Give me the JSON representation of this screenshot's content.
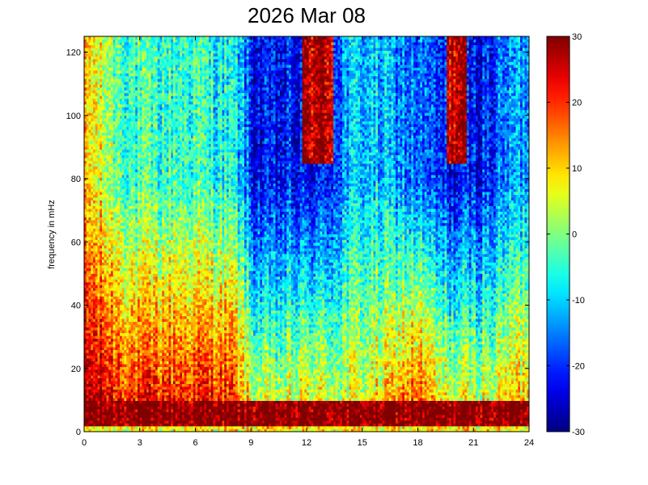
{
  "chart_data": {
    "type": "heatmap",
    "title": "2026 Mar 08",
    "xlabel": "",
    "ylabel": "frequency in mHz",
    "xlim": [
      0,
      24
    ],
    "ylim": [
      0,
      125
    ],
    "x_ticks": [
      0,
      3,
      6,
      9,
      12,
      15,
      18,
      21,
      24
    ],
    "y_ticks": [
      0,
      20,
      40,
      60,
      80,
      100,
      120
    ],
    "colorbar": {
      "colormap": "jet",
      "clim": [
        -30,
        30
      ],
      "ticks": [
        -30,
        -20,
        -10,
        0,
        10,
        20,
        30
      ]
    },
    "grid": false,
    "description_of_values": "spectrogram levels: high (red/dark red) at low frequencies (< ~10 mHz) all day; hours 0-8.6 mostly yellow-red up to ~60 mHz and cyan-yellow above; after ~8.6 h strong drop to blue/dark blue above ~60 mHz, with dark red vertical streaks near 12-13 h and 19.5-21 h at high frequencies; enhancement around 17-18 h below ~40 mHz",
    "time_profile": {
      "hours": [
        0,
        1,
        2,
        3,
        4,
        5,
        6,
        7,
        8,
        8.6,
        9,
        10,
        11,
        12,
        13,
        14,
        15,
        16,
        17,
        18,
        19,
        20,
        21,
        22,
        23,
        24
      ],
      "low_band_level": [
        28,
        25,
        22,
        20,
        21,
        22,
        21,
        22,
        20,
        12,
        5,
        3,
        4,
        8,
        6,
        5,
        6,
        8,
        14,
        18,
        8,
        6,
        5,
        6,
        10,
        12
      ],
      "high_band_level": [
        10,
        4,
        -2,
        -5,
        -5,
        -4,
        -4,
        -6,
        -8,
        -12,
        -22,
        -24,
        -22,
        -24,
        -22,
        -14,
        -10,
        -12,
        -14,
        -16,
        -20,
        -24,
        -22,
        -20,
        -14,
        -12
      ]
    }
  }
}
